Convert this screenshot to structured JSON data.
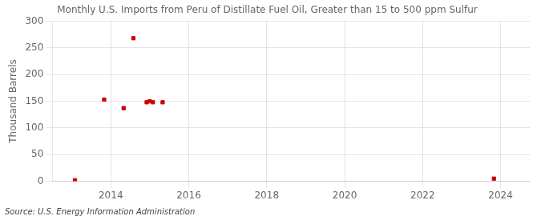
{
  "chart_data": {
    "type": "scatter",
    "title": "Monthly U.S. Imports from Peru of Distillate Fuel Oil, Greater than 15 to 500 ppm Sulfur",
    "ylabel": "Thousand Barrels",
    "annotations": [
      "Source: U.S. Energy Information Administration"
    ],
    "x": [
      2013.08,
      2013.83,
      2014.33,
      2014.58,
      2014.92,
      2015,
      2015.08,
      2015.33,
      2023.83
    ],
    "values": [
      2,
      153,
      137,
      268,
      148,
      150,
      148,
      148,
      5
    ],
    "color": "#cc0000",
    "marker": "square",
    "xlim": [
      2012.5,
      2024.75
    ],
    "ylim": [
      0,
      300
    ],
    "xticks": [
      2014,
      2016,
      2018,
      2020,
      2022,
      2024
    ],
    "yticks": [
      0,
      50,
      100,
      150,
      200,
      250,
      300
    ],
    "grid": true
  }
}
